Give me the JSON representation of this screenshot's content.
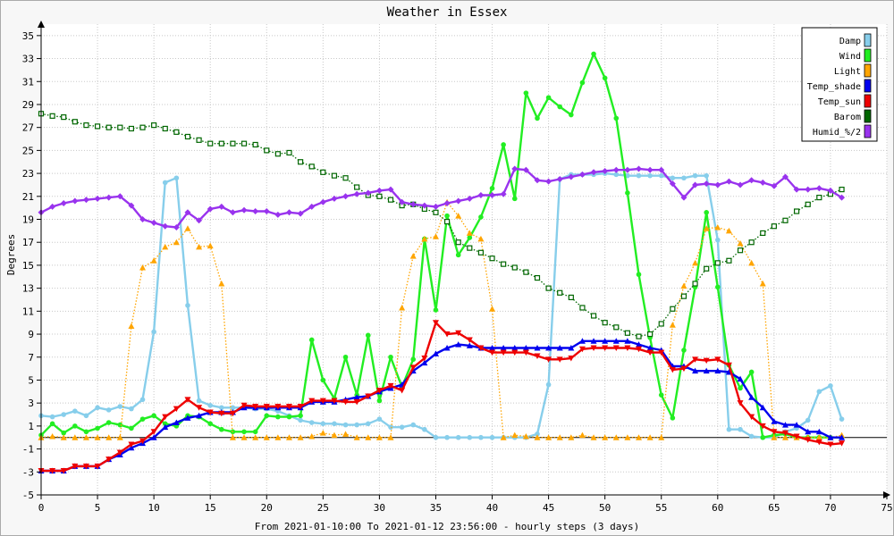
{
  "chart_data": {
    "type": "line",
    "title": "Weather in Essex",
    "xlabel": "From 2021-01-10:00 To 2021-01-12 23:56:00 - hourly steps (3 days)",
    "ylabel": "Degrees",
    "xlim": [
      0,
      75
    ],
    "ylim": [
      -5,
      36
    ],
    "x_ticks": [
      0,
      5,
      10,
      15,
      20,
      25,
      30,
      35,
      40,
      45,
      50,
      55,
      60,
      65,
      70,
      75
    ],
    "y_ticks": [
      -5,
      -3,
      -1,
      1,
      3,
      5,
      7,
      9,
      11,
      13,
      15,
      17,
      19,
      21,
      23,
      25,
      27,
      29,
      31,
      33,
      35
    ],
    "grid": true,
    "legend_position": "top-right",
    "series": [
      {
        "name": "Damp",
        "color": "#87ceeb",
        "style": "solid",
        "marker": "circle",
        "values": [
          1.9,
          1.8,
          2.0,
          2.3,
          1.9,
          2.6,
          2.4,
          2.7,
          2.5,
          3.3,
          9.2,
          22.2,
          22.6,
          11.5,
          3.2,
          2.8,
          2.6,
          2.6,
          2.6,
          2.5,
          2.5,
          2.3,
          1.9,
          1.5,
          1.3,
          1.2,
          1.2,
          1.1,
          1.1,
          1.2,
          1.6,
          0.9,
          0.9,
          1.1,
          0.7,
          0.0,
          0.0,
          0.0,
          0.0,
          0.0,
          0.0,
          0.0,
          0.0,
          0.0,
          0.3,
          4.6,
          22.5,
          22.9,
          22.9,
          22.9,
          23.0,
          22.9,
          22.8,
          22.8,
          22.8,
          22.8,
          22.6,
          22.6,
          22.8,
          22.8,
          17.2,
          0.7,
          0.7,
          0.1,
          0.0,
          0.0,
          0.5,
          0.8,
          1.5,
          4.0,
          4.5,
          1.6
        ]
      },
      {
        "name": "Wind",
        "color": "#22ee22",
        "style": "solid",
        "marker": "circle",
        "values": [
          0.2,
          1.2,
          0.4,
          1.0,
          0.5,
          0.8,
          1.3,
          1.1,
          0.8,
          1.6,
          1.9,
          1.2,
          1.0,
          1.9,
          1.8,
          1.2,
          0.7,
          0.5,
          0.5,
          0.5,
          1.9,
          1.8,
          1.8,
          1.9,
          8.5,
          5.0,
          3.4,
          7.0,
          3.7,
          8.9,
          3.2,
          7.0,
          4.4,
          6.8,
          17.3,
          11.1,
          19.3,
          15.9,
          17.4,
          19.2,
          21.7,
          25.5,
          20.8,
          30.0,
          27.8,
          29.6,
          28.8,
          28.1,
          30.9,
          33.4,
          31.3,
          27.8,
          21.3,
          14.2,
          8.7,
          3.7,
          1.7,
          7.6,
          13.1,
          19.6,
          13.1,
          6.3,
          4.3,
          5.7,
          0.0,
          0.2,
          0.3,
          0.0,
          0.0,
          0.0,
          0.0,
          0.0
        ]
      },
      {
        "name": "Light",
        "color": "#ffa500",
        "style": "dotted",
        "marker": "triangle-up",
        "values": [
          0.0,
          0.1,
          0.0,
          0.0,
          0.0,
          0.0,
          0.0,
          0.0,
          9.7,
          14.8,
          15.4,
          16.6,
          17.0,
          18.2,
          16.6,
          16.7,
          13.4,
          0.0,
          0.0,
          0.0,
          0.0,
          0.0,
          0.0,
          0.0,
          0.1,
          0.4,
          0.2,
          0.3,
          0.0,
          0.0,
          0.0,
          0.0,
          11.3,
          15.8,
          17.3,
          17.5,
          20.5,
          19.3,
          17.8,
          17.3,
          11.2,
          0.0,
          0.2,
          0.1,
          0.0,
          0.0,
          0.0,
          0.0,
          0.2,
          0.0,
          0.0,
          0.0,
          0.0,
          0.0,
          0.0,
          0.0,
          9.8,
          13.2,
          15.2,
          18.2,
          18.3,
          18.0,
          16.9,
          15.2,
          13.4,
          0.0,
          0.0,
          0.0,
          0.0,
          0.0,
          0.0,
          0.2
        ]
      },
      {
        "name": "Temp_shade",
        "color": "#0000ee",
        "style": "solid",
        "marker": "triangle-up",
        "values": [
          -2.9,
          -2.9,
          -2.9,
          -2.5,
          -2.5,
          -2.5,
          -1.9,
          -1.5,
          -0.9,
          -0.5,
          0.0,
          0.9,
          1.3,
          1.7,
          1.9,
          2.2,
          2.2,
          2.2,
          2.6,
          2.6,
          2.6,
          2.6,
          2.6,
          2.6,
          3.1,
          3.1,
          3.1,
          3.3,
          3.5,
          3.6,
          4.0,
          4.3,
          4.6,
          5.8,
          6.5,
          7.3,
          7.8,
          8.1,
          8.0,
          7.8,
          7.8,
          7.8,
          7.8,
          7.8,
          7.8,
          7.8,
          7.8,
          7.8,
          8.4,
          8.4,
          8.4,
          8.4,
          8.4,
          8.1,
          7.8,
          7.6,
          6.2,
          6.2,
          5.8,
          5.8,
          5.8,
          5.7,
          5.1,
          3.5,
          2.6,
          1.4,
          1.1,
          1.1,
          0.5,
          0.5,
          0.0,
          0.0
        ]
      },
      {
        "name": "Temp_sun",
        "color": "#ee0000",
        "style": "solid",
        "marker": "triangle-down",
        "values": [
          -2.9,
          -2.9,
          -2.9,
          -2.5,
          -2.5,
          -2.5,
          -1.9,
          -1.3,
          -0.6,
          -0.3,
          0.5,
          1.8,
          2.5,
          3.3,
          2.6,
          2.2,
          2.1,
          2.1,
          2.8,
          2.7,
          2.7,
          2.7,
          2.7,
          2.7,
          3.2,
          3.2,
          3.2,
          3.1,
          3.1,
          3.6,
          4.1,
          4.5,
          4.1,
          6.1,
          6.9,
          10.0,
          9.0,
          9.1,
          8.5,
          7.8,
          7.4,
          7.4,
          7.4,
          7.4,
          7.1,
          6.8,
          6.8,
          6.9,
          7.7,
          7.8,
          7.8,
          7.8,
          7.8,
          7.7,
          7.4,
          7.4,
          5.9,
          6.0,
          6.8,
          6.7,
          6.8,
          6.3,
          3.0,
          1.8,
          1.0,
          0.5,
          0.4,
          0.1,
          -0.2,
          -0.4,
          -0.6,
          -0.5
        ]
      },
      {
        "name": "Barom",
        "color": "#006600",
        "style": "dotted",
        "marker": "square",
        "values": [
          28.2,
          28.0,
          27.9,
          27.5,
          27.2,
          27.1,
          27.0,
          27.0,
          26.9,
          27.0,
          27.2,
          26.9,
          26.6,
          26.2,
          25.9,
          25.6,
          25.6,
          25.6,
          25.6,
          25.5,
          25.0,
          24.7,
          24.8,
          24.0,
          23.6,
          23.1,
          22.8,
          22.6,
          21.8,
          21.1,
          21.0,
          20.7,
          20.2,
          20.3,
          19.9,
          19.6,
          18.8,
          17.0,
          16.5,
          16.1,
          15.6,
          15.1,
          14.8,
          14.4,
          13.9,
          13.0,
          12.6,
          12.2,
          11.3,
          10.6,
          10.0,
          9.6,
          9.1,
          8.8,
          9.0,
          9.9,
          11.2,
          12.3,
          13.4,
          14.7,
          15.2,
          15.4,
          16.3,
          17.0,
          17.8,
          18.4,
          18.9,
          19.7,
          20.3,
          20.9,
          21.2,
          21.6
        ]
      },
      {
        "name": "Humid_%/2",
        "color": "#9933ee",
        "style": "solid",
        "marker": "diamond",
        "values": [
          19.6,
          20.1,
          20.4,
          20.6,
          20.7,
          20.8,
          20.9,
          21.0,
          20.2,
          19.0,
          18.7,
          18.4,
          18.3,
          19.6,
          18.9,
          19.9,
          20.1,
          19.6,
          19.8,
          19.7,
          19.7,
          19.4,
          19.6,
          19.5,
          20.1,
          20.5,
          20.8,
          21.0,
          21.2,
          21.3,
          21.5,
          21.6,
          20.5,
          20.3,
          20.2,
          20.1,
          20.4,
          20.6,
          20.8,
          21.1,
          21.1,
          21.2,
          23.4,
          23.3,
          22.4,
          22.3,
          22.5,
          22.7,
          22.9,
          23.1,
          23.2,
          23.3,
          23.3,
          23.4,
          23.3,
          23.3,
          22.1,
          20.9,
          22.0,
          22.1,
          22.0,
          22.3,
          22.0,
          22.4,
          22.2,
          21.9,
          22.7,
          21.6,
          21.6,
          21.7,
          21.5,
          20.9
        ]
      }
    ]
  }
}
